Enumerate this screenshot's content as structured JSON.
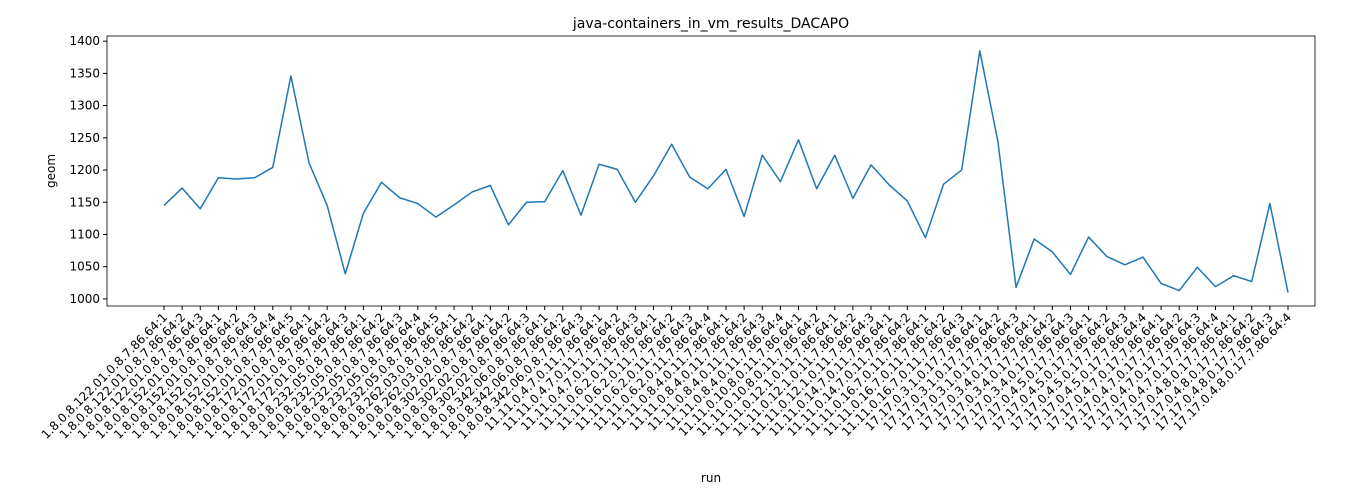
{
  "chart_data": {
    "type": "line",
    "title": "java-containers_in_vm_results_DACAPO",
    "x_label": "run",
    "y_label": "geom",
    "categories": [
      "1.8.0.8.122.01.0.8.7.86.64:1",
      "1.8.0.8.122.01.0.8.7.86.64:2",
      "1.8.0.8.122.01.0.8.7.86.64:3",
      "1.8.0.8.152.01.0.8.7.86.64:1",
      "1.8.0.8.152.01.0.8.7.86.64:2",
      "1.8.0.8.152.01.0.8.7.86.64:3",
      "1.8.0.8.152.01.0.8.7.86.64:4",
      "1.8.0.8.152.01.0.8.7.86.64:5",
      "1.8.0.8.172.01.0.8.7.86.64:1",
      "1.8.0.8.172.01.0.8.7.86.64:2",
      "1.8.0.8.172.01.0.8.7.86.64:3",
      "1.8.0.8.232.05.0.8.7.86.64:1",
      "1.8.0.8.232.05.0.8.7.86.64:2",
      "1.8.0.8.232.05.0.8.7.86.64:3",
      "1.8.0.8.232.05.0.8.7.86.64:4",
      "1.8.0.8.232.05.0.8.7.86.64:5",
      "1.8.0.8.262.03.0.8.7.86.64:1",
      "1.8.0.8.262.03.0.8.7.86.64:2",
      "1.8.0.8.302.02.0.8.7.86.64:1",
      "1.8.0.8.302.02.0.8.7.86.64:2",
      "1.8.0.8.302.02.0.8.7.86.64:3",
      "1.8.0.8.342.06.0.8.7.86.64:1",
      "1.8.0.8.342.06.0.8.7.86.64:2",
      "1.8.0.8.342.06.0.8.7.86.64:3",
      "11.11.0.4.7.0.11.7.86.64:1",
      "11.11.0.4.7.0.11.7.86.64:2",
      "11.11.0.4.7.0.11.7.86.64:3",
      "11.11.0.6.2.0.11.7.86.64:1",
      "11.11.0.6.2.0.11.7.86.64:2",
      "11.11.0.6.2.0.11.7.86.64:3",
      "11.11.0.6.2.0.11.7.86.64:4",
      "11.11.0.8.4.0.11.7.86.64:1",
      "11.11.0.8.4.0.11.7.86.64:2",
      "11.11.0.8.4.0.11.7.86.64:3",
      "11.11.0.8.4.0.11.7.86.64:4",
      "11.11.0.10.8.0.11.7.86.64:1",
      "11.11.0.10.8.0.11.7.86.64:2",
      "11.11.0.12.1.0.11.7.86.64:1",
      "11.11.0.12.1.0.11.7.86.64:2",
      "11.11.0.12.1.0.11.7.86.64:3",
      "11.11.0.14.7.0.11.7.86.64:1",
      "11.11.0.14.7.0.11.7.86.64:2",
      "11.11.0.16.7.0.11.7.86.64:1",
      "11.11.0.16.7.0.11.7.86.64:2",
      "11.11.0.16.7.0.11.7.86.64:3",
      "17.17.0.3.1.0.17.7.86.64:1",
      "17.17.0.3.1.0.17.7.86.64:2",
      "17.17.0.3.1.0.17.7.86.64:3",
      "17.17.0.3.4.0.17.7.86.64:1",
      "17.17.0.3.4.0.17.7.86.64:2",
      "17.17.0.3.4.0.17.7.86.64:3",
      "17.17.0.4.5.0.17.7.86.64:1",
      "17.17.0.4.5.0.17.7.86.64:2",
      "17.17.0.4.5.0.17.7.86.64:3",
      "17.17.0.4.5.0.17.7.86.64:4",
      "17.17.0.4.7.0.17.7.86.64:1",
      "17.17.0.4.7.0.17.7.86.64:2",
      "17.17.0.4.7.0.17.7.86.64:3",
      "17.17.0.4.7.0.17.7.86.64:4",
      "17.17.0.4.8.0.17.7.86.64:1",
      "17.17.0.4.8.0.17.7.86.64:2",
      "17.17.0.4.8.0.17.7.86.64:3",
      "17.17.0.4.8.0.17.7.86.64:4"
    ],
    "values": [
      1145,
      1172,
      1140,
      1188,
      1186,
      1188,
      1204,
      1346,
      1211,
      1145,
      1039,
      1133,
      1181,
      1157,
      1148,
      1127,
      1146,
      1166,
      1176,
      1115,
      1150,
      1151,
      1199,
      1130,
      1209,
      1201,
      1150,
      1191,
      1240,
      1189,
      1171,
      1201,
      1128,
      1223,
      1182,
      1247,
      1171,
      1223,
      1156,
      1208,
      1177,
      1152,
      1095,
      1178,
      1200,
      1385,
      1244,
      1018,
      1093,
      1073,
      1038,
      1096,
      1066,
      1053,
      1065,
      1024,
      1013,
      1049,
      1019,
      1036,
      1027,
      1148,
      1010
    ],
    "color": "#1f77b4",
    "ylim": [
      989,
      1408
    ],
    "yticks": [
      1000,
      1050,
      1100,
      1150,
      1200,
      1250,
      1300,
      1350,
      1400
    ]
  }
}
